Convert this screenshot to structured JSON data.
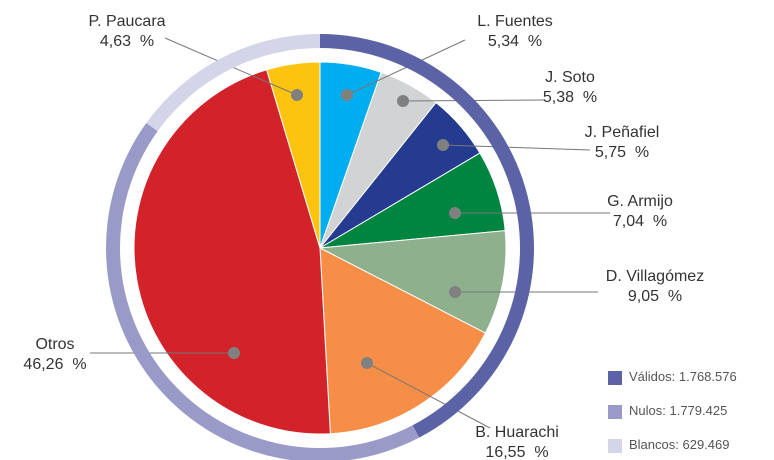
{
  "chart_data": [
    {
      "type": "pie",
      "categories": [
        "L. Fuentes",
        "J. Soto",
        "J. Peñafiel",
        "G. Armijo",
        "D. Villagómez",
        "B. Huarachi",
        "Otros",
        "P. Paucara"
      ],
      "values": [
        5.34,
        5.38,
        5.75,
        7.04,
        9.05,
        16.55,
        46.26,
        4.63
      ],
      "value_labels": [
        "5,34  %",
        "5,38  %",
        "5,75  %",
        "7,04  %",
        "9,05  %",
        "16,55  %",
        "46,26  %",
        "4,63  %"
      ],
      "colors": [
        "#00aeef",
        "#d1d3d4",
        "#253b8f",
        "#008540",
        "#8fb08c",
        "#f68e47",
        "#d2232a",
        "#fdc40f"
      ]
    },
    {
      "type": "donut",
      "categories": [
        "Válidos",
        "Nulos",
        "Blancos"
      ],
      "values": [
        1768576,
        1779425,
        629469
      ],
      "value_labels": [
        "1.768.576",
        "1.779.425",
        "629.469"
      ],
      "colors": [
        "#5b63a6",
        "#9a9ac8",
        "#d4d5e8"
      ]
    }
  ]
}
